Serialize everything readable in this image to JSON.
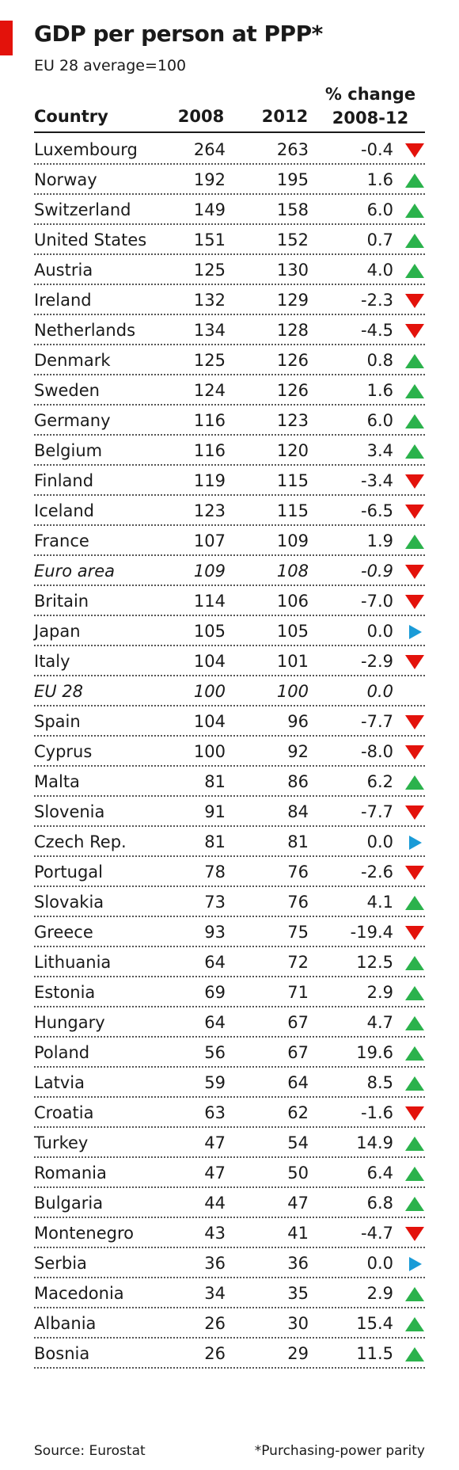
{
  "header": {
    "title": "GDP per person at PPP*",
    "subtitle": "EU 28 average=100"
  },
  "columns": {
    "country": "Country",
    "y2008": "2008",
    "y2012": "2012",
    "change_line1": "% change",
    "change_line2": "2008-12"
  },
  "footer": {
    "source": "Source: Eurostat",
    "note": "*Purchasing-power parity"
  },
  "colors": {
    "up": "#2bb24c",
    "down": "#e3120b",
    "flat": "#1a9bd7",
    "accent": "#e3120b"
  },
  "chart_data": {
    "type": "table",
    "title": "GDP per person at PPP*",
    "subtitle": "EU 28 average=100",
    "columns": [
      "Country",
      "2008",
      "2012",
      "% change 2008-12"
    ],
    "rows": [
      {
        "country": "Luxembourg",
        "y2008": "264",
        "y2012": "263",
        "change": "-0.4",
        "trend": "down",
        "italic": false
      },
      {
        "country": "Norway",
        "y2008": "192",
        "y2012": "195",
        "change": "1.6",
        "trend": "up",
        "italic": false
      },
      {
        "country": "Switzerland",
        "y2008": "149",
        "y2012": "158",
        "change": "6.0",
        "trend": "up",
        "italic": false
      },
      {
        "country": "United States",
        "y2008": "151",
        "y2012": "152",
        "change": "0.7",
        "trend": "up",
        "italic": false
      },
      {
        "country": "Austria",
        "y2008": "125",
        "y2012": "130",
        "change": "4.0",
        "trend": "up",
        "italic": false
      },
      {
        "country": "Ireland",
        "y2008": "132",
        "y2012": "129",
        "change": "-2.3",
        "trend": "down",
        "italic": false
      },
      {
        "country": "Netherlands",
        "y2008": "134",
        "y2012": "128",
        "change": "-4.5",
        "trend": "down",
        "italic": false
      },
      {
        "country": "Denmark",
        "y2008": "125",
        "y2012": "126",
        "change": "0.8",
        "trend": "up",
        "italic": false
      },
      {
        "country": "Sweden",
        "y2008": "124",
        "y2012": "126",
        "change": "1.6",
        "trend": "up",
        "italic": false
      },
      {
        "country": "Germany",
        "y2008": "116",
        "y2012": "123",
        "change": "6.0",
        "trend": "up",
        "italic": false
      },
      {
        "country": "Belgium",
        "y2008": "116",
        "y2012": "120",
        "change": "3.4",
        "trend": "up",
        "italic": false
      },
      {
        "country": "Finland",
        "y2008": "119",
        "y2012": "115",
        "change": "-3.4",
        "trend": "down",
        "italic": false
      },
      {
        "country": "Iceland",
        "y2008": "123",
        "y2012": "115",
        "change": "-6.5",
        "trend": "down",
        "italic": false
      },
      {
        "country": "France",
        "y2008": "107",
        "y2012": "109",
        "change": "1.9",
        "trend": "up",
        "italic": false
      },
      {
        "country": "Euro area",
        "y2008": "109",
        "y2012": "108",
        "change": "-0.9",
        "trend": "down",
        "italic": true
      },
      {
        "country": "Britain",
        "y2008": "114",
        "y2012": "106",
        "change": "-7.0",
        "trend": "down",
        "italic": false
      },
      {
        "country": "Japan",
        "y2008": "105",
        "y2012": "105",
        "change": "0.0",
        "trend": "flat",
        "italic": false
      },
      {
        "country": "Italy",
        "y2008": "104",
        "y2012": "101",
        "change": "-2.9",
        "trend": "down",
        "italic": false
      },
      {
        "country": "EU 28",
        "y2008": "100",
        "y2012": "100",
        "change": "0.0",
        "trend": "none",
        "italic": true
      },
      {
        "country": "Spain",
        "y2008": "104",
        "y2012": "96",
        "change": "-7.7",
        "trend": "down",
        "italic": false
      },
      {
        "country": "Cyprus",
        "y2008": "100",
        "y2012": "92",
        "change": "-8.0",
        "trend": "down",
        "italic": false
      },
      {
        "country": "Malta",
        "y2008": "81",
        "y2012": "86",
        "change": "6.2",
        "trend": "up",
        "italic": false
      },
      {
        "country": "Slovenia",
        "y2008": "91",
        "y2012": "84",
        "change": "-7.7",
        "trend": "down",
        "italic": false
      },
      {
        "country": "Czech Rep.",
        "y2008": "81",
        "y2012": "81",
        "change": "0.0",
        "trend": "flat",
        "italic": false
      },
      {
        "country": "Portugal",
        "y2008": "78",
        "y2012": "76",
        "change": "-2.6",
        "trend": "down",
        "italic": false
      },
      {
        "country": "Slovakia",
        "y2008": "73",
        "y2012": "76",
        "change": "4.1",
        "trend": "up",
        "italic": false
      },
      {
        "country": "Greece",
        "y2008": "93",
        "y2012": "75",
        "change": "-19.4",
        "trend": "down",
        "italic": false
      },
      {
        "country": "Lithuania",
        "y2008": "64",
        "y2012": "72",
        "change": "12.5",
        "trend": "up",
        "italic": false
      },
      {
        "country": "Estonia",
        "y2008": "69",
        "y2012": "71",
        "change": "2.9",
        "trend": "up",
        "italic": false
      },
      {
        "country": "Hungary",
        "y2008": "64",
        "y2012": "67",
        "change": "4.7",
        "trend": "up",
        "italic": false
      },
      {
        "country": "Poland",
        "y2008": "56",
        "y2012": "67",
        "change": "19.6",
        "trend": "up",
        "italic": false
      },
      {
        "country": "Latvia",
        "y2008": "59",
        "y2012": "64",
        "change": "8.5",
        "trend": "up",
        "italic": false
      },
      {
        "country": "Croatia",
        "y2008": "63",
        "y2012": "62",
        "change": "-1.6",
        "trend": "down",
        "italic": false
      },
      {
        "country": "Turkey",
        "y2008": "47",
        "y2012": "54",
        "change": "14.9",
        "trend": "up",
        "italic": false
      },
      {
        "country": "Romania",
        "y2008": "47",
        "y2012": "50",
        "change": "6.4",
        "trend": "up",
        "italic": false
      },
      {
        "country": "Bulgaria",
        "y2008": "44",
        "y2012": "47",
        "change": "6.8",
        "trend": "up",
        "italic": false
      },
      {
        "country": "Montenegro",
        "y2008": "43",
        "y2012": "41",
        "change": "-4.7",
        "trend": "down",
        "italic": false
      },
      {
        "country": "Serbia",
        "y2008": "36",
        "y2012": "36",
        "change": "0.0",
        "trend": "flat",
        "italic": false
      },
      {
        "country": "Macedonia",
        "y2008": "34",
        "y2012": "35",
        "change": "2.9",
        "trend": "up",
        "italic": false
      },
      {
        "country": "Albania",
        "y2008": "26",
        "y2012": "30",
        "change": "15.4",
        "trend": "up",
        "italic": false
      },
      {
        "country": "Bosnia",
        "y2008": "26",
        "y2012": "29",
        "change": "11.5",
        "trend": "up",
        "italic": false
      }
    ]
  }
}
